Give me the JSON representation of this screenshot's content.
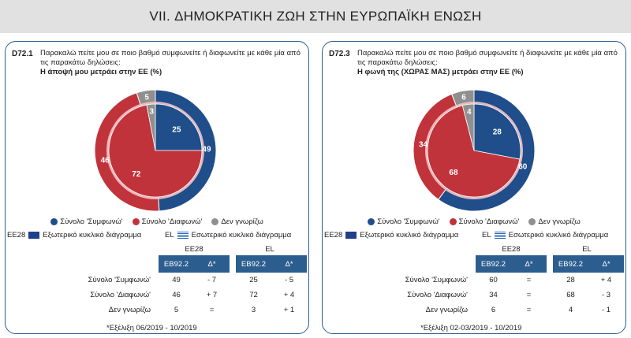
{
  "header": {
    "title": "VII. ΔΗΜΟΚΡΑΤΙΚΗ ΖΩΗ ΣΤΗΝ ΕΥΡΩΠΑΪΚΗ ΕΝΩΣΗ"
  },
  "colors": {
    "agree": "#1f4e8a",
    "disagree": "#c1333b",
    "dontknow": "#8f8f8f",
    "header_bg": "#e1e1e1",
    "table_head": "#2c5d8f"
  },
  "panels": [
    {
      "code": "D72.1",
      "question": "Παρακαλώ πείτε μου σε ποιο βαθμό συμφωνείτε ή διαφωνείτε με κάθε μία από τις παρακάτω δηλώσεις:",
      "statement": "Η άποψή μου μετράει στην ΕΕ  (%)",
      "legend": [
        "Σύνολο 'Συμφωνώ'",
        "Σύνολο 'Διαφωνώ'",
        "Δεν γνωρίζω"
      ],
      "ring_labels": {
        "outer_code": "EE28",
        "outer_text": "Εξωτερικό κυκλικό διάγραμμα",
        "inner_code": "EL",
        "inner_text": "Εσωτερικό κυκλικό διάγραμμα"
      },
      "table": {
        "group_labels": [
          "EE28",
          "EL"
        ],
        "col_headers": [
          "EB92.2",
          "Δ*",
          "EB92.2",
          "Δ*"
        ],
        "rows": [
          {
            "label": "Σύνολο 'Συμφωνώ'",
            "eu": "49",
            "eu_d": "- 7",
            "el": "25",
            "el_d": "- 5"
          },
          {
            "label": "Σύνολο 'Διαφωνώ'",
            "eu": "46",
            "eu_d": "+ 7",
            "el": "72",
            "el_d": "+ 4"
          },
          {
            "label": "Δεν γνωρίζω",
            "eu": "5",
            "eu_d": "=",
            "el": "3",
            "el_d": "+ 1"
          }
        ]
      },
      "note": "*Εξέλιξη 06/2019 - 10/2019"
    },
    {
      "code": "D72.3",
      "question": "Παρακαλώ πείτε μου σε ποιο βαθμό συμφωνείτε ή διαφωνείτε με κάθε μία από τις παρακάτω δηλώσεις:",
      "statement": "Η φωνή της (ΧΩΡΑΣ ΜΑΣ) μετράει στην ΕΕ  (%)",
      "legend": [
        "Σύνολο 'Συμφωνώ'",
        "Σύνολο 'Διαφωνώ'",
        "Δεν γνωρίζω"
      ],
      "ring_labels": {
        "outer_code": "EE28",
        "outer_text": "Εξωτερικό κυκλικό διάγραμμα",
        "inner_code": "EL",
        "inner_text": "Εσωτερικό κυκλικό διάγραμμα"
      },
      "table": {
        "group_labels": [
          "EE28",
          "EL"
        ],
        "col_headers": [
          "EB92.2",
          "Δ*",
          "EB92.2",
          "Δ*"
        ],
        "rows": [
          {
            "label": "Σύνολο 'Συμφωνώ'",
            "eu": "60",
            "eu_d": "=",
            "el": "28",
            "el_d": "+ 4"
          },
          {
            "label": "Σύνολο 'Διαφωνώ'",
            "eu": "34",
            "eu_d": "=",
            "el": "68",
            "el_d": "- 3"
          },
          {
            "label": "Δεν γνωρίζω",
            "eu": "6",
            "eu_d": "=",
            "el": "4",
            "el_d": "- 1"
          }
        ]
      },
      "note": "*Εξέλιξη 02-03/2019 - 10/2019"
    }
  ],
  "chart_data": [
    {
      "type": "pie",
      "title": "Η άποψή μου μετράει στην ΕΕ  (%)",
      "categories": [
        "Σύνολο 'Συμφωνώ'",
        "Σύνολο 'Διαφωνώ'",
        "Δεν γνωρίζω"
      ],
      "series": [
        {
          "name": "EE28",
          "values": [
            49,
            46,
            5
          ]
        },
        {
          "name": "EL",
          "values": [
            25,
            72,
            3
          ]
        }
      ]
    },
    {
      "type": "pie",
      "title": "Η φωνή της (ΧΩΡΑΣ ΜΑΣ) μετράει στην ΕΕ  (%)",
      "categories": [
        "Σύνολο 'Συμφωνώ'",
        "Σύνολο 'Διαφωνώ'",
        "Δεν γνωρίζω"
      ],
      "series": [
        {
          "name": "EE28",
          "values": [
            60,
            34,
            6
          ]
        },
        {
          "name": "EL",
          "values": [
            28,
            68,
            4
          ]
        }
      ]
    }
  ]
}
